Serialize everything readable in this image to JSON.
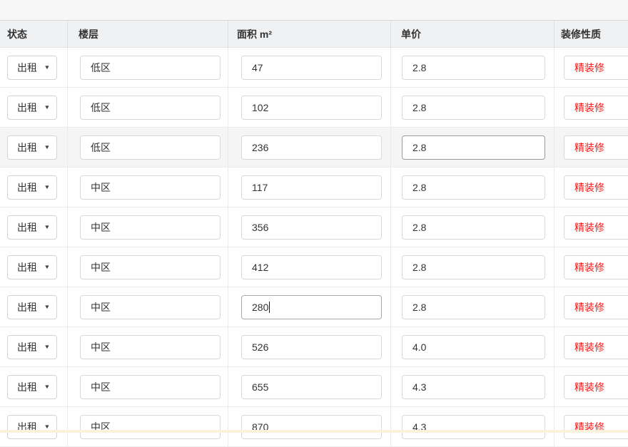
{
  "header": {
    "columns": [
      "状态",
      "楼层",
      "面积 m²",
      "单价",
      "装修性质"
    ]
  },
  "rows": [
    {
      "status": "出租",
      "floor": "低区",
      "area": "47",
      "price": "2.8",
      "decoration": "精装修"
    },
    {
      "status": "出租",
      "floor": "低区",
      "area": "102",
      "price": "2.8",
      "decoration": "精装修"
    },
    {
      "status": "出租",
      "floor": "低区",
      "area": "236",
      "price": "2.8",
      "decoration": "精装修"
    },
    {
      "status": "出租",
      "floor": "中区",
      "area": "117",
      "price": "2.8",
      "decoration": "精装修"
    },
    {
      "status": "出租",
      "floor": "中区",
      "area": "356",
      "price": "2.8",
      "decoration": "精装修"
    },
    {
      "status": "出租",
      "floor": "中区",
      "area": "412",
      "price": "2.8",
      "decoration": "精装修"
    },
    {
      "status": "出租",
      "floor": "中区",
      "area": "280",
      "price": "2.8",
      "decoration": "精装修"
    },
    {
      "status": "出租",
      "floor": "中区",
      "area": "526",
      "price": "4.0",
      "decoration": "精装修"
    },
    {
      "status": "出租",
      "floor": "中区",
      "area": "655",
      "price": "4.3",
      "decoration": "精装修"
    },
    {
      "status": "出租",
      "floor": "中区",
      "area": "870",
      "price": "4.3",
      "decoration": "精装修"
    }
  ],
  "colors": {
    "decoration_text": "#fe1313",
    "row_hover_bg": "#f5f5f5",
    "header_bg": "#f0f1f2",
    "bottom_strip_bg": "#fcf1dd"
  }
}
